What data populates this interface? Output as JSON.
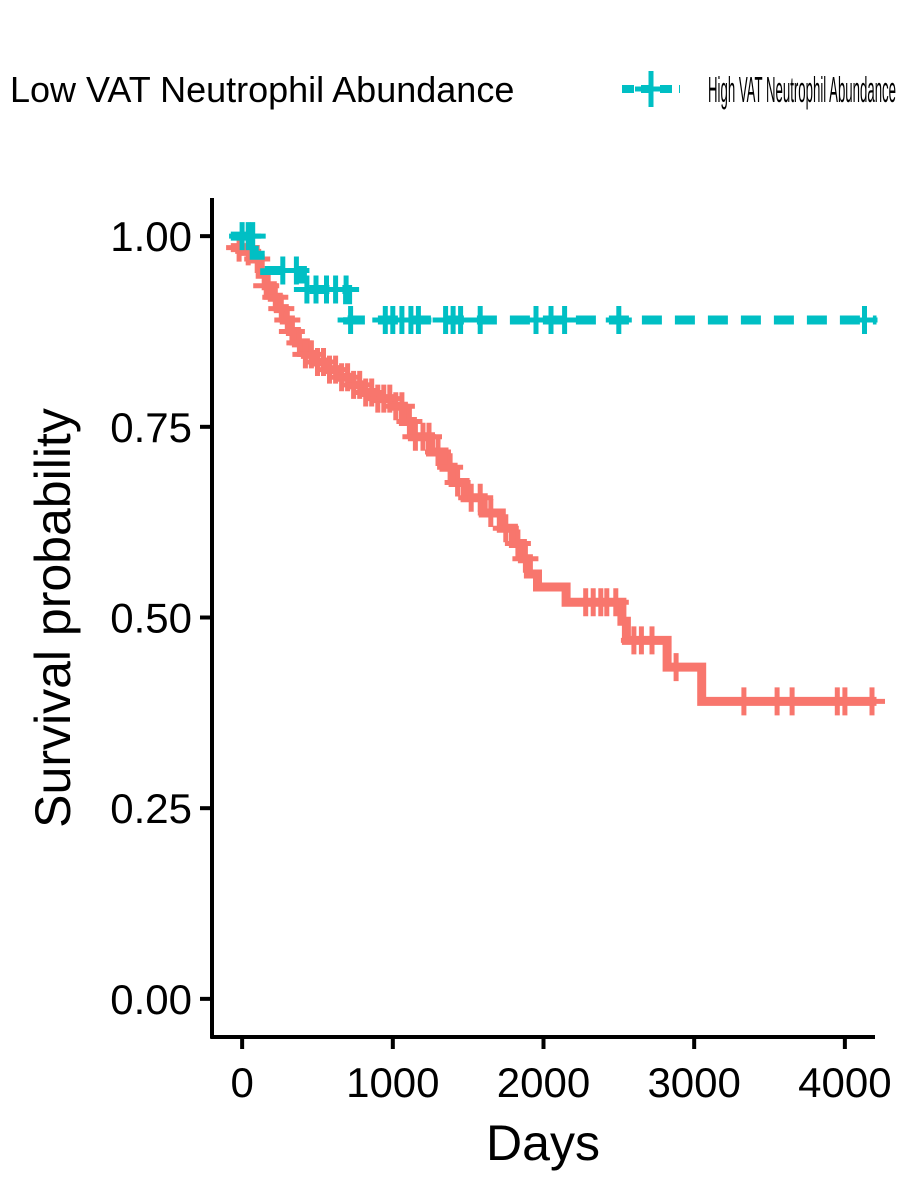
{
  "chart_data": {
    "type": "line",
    "subtype": "kaplan-meier",
    "title": "",
    "xlabel": "Days",
    "ylabel": "Survival probability",
    "xlim": [
      -200,
      4200
    ],
    "ylim": [
      -0.05,
      1.05
    ],
    "x_ticks": [
      0,
      1000,
      2000,
      3000,
      4000
    ],
    "y_ticks": [
      0.0,
      0.25,
      0.5,
      0.75,
      1.0
    ],
    "x_tick_labels": [
      "0",
      "1000",
      "2000",
      "3000",
      "4000"
    ],
    "y_tick_labels": [
      "0.00",
      "0.25",
      "0.50",
      "0.75",
      "1.00"
    ],
    "grid": false,
    "legend_position": "top",
    "series": [
      {
        "name": "Low VAT Neutrophil Abundance",
        "color": "#F8766D",
        "line_style": "solid",
        "steps": [
          [
            -75,
            0.985
          ],
          [
            0,
            0.98
          ],
          [
            60,
            0.97
          ],
          [
            120,
            0.95
          ],
          [
            160,
            0.935
          ],
          [
            200,
            0.92
          ],
          [
            240,
            0.905
          ],
          [
            280,
            0.89
          ],
          [
            320,
            0.875
          ],
          [
            360,
            0.86
          ],
          [
            420,
            0.845
          ],
          [
            480,
            0.835
          ],
          [
            560,
            0.825
          ],
          [
            640,
            0.815
          ],
          [
            720,
            0.805
          ],
          [
            800,
            0.795
          ],
          [
            880,
            0.787
          ],
          [
            1000,
            0.777
          ],
          [
            1070,
            0.757
          ],
          [
            1130,
            0.737
          ],
          [
            1250,
            0.717
          ],
          [
            1340,
            0.697
          ],
          [
            1400,
            0.677
          ],
          [
            1480,
            0.657
          ],
          [
            1600,
            0.637
          ],
          [
            1720,
            0.617
          ],
          [
            1800,
            0.597
          ],
          [
            1860,
            0.577
          ],
          [
            1900,
            0.557
          ],
          [
            1960,
            0.54
          ],
          [
            2150,
            0.52
          ],
          [
            2520,
            0.495
          ],
          [
            2550,
            0.47
          ],
          [
            2820,
            0.435
          ],
          [
            3050,
            0.39
          ],
          [
            4210,
            0.39
          ]
        ],
        "censor_x": [
          -20,
          40,
          100,
          160,
          220,
          260,
          300,
          330,
          380,
          420,
          460,
          500,
          540,
          580,
          620,
          660,
          700,
          740,
          780,
          820,
          860,
          900,
          940,
          980,
          1020,
          1060,
          1110,
          1150,
          1200,
          1240,
          1300,
          1380,
          1430,
          1520,
          1580,
          1650,
          1750,
          1830,
          1880,
          2280,
          2330,
          2380,
          2420,
          2480,
          2600,
          2650,
          2720,
          2880,
          3330,
          3550,
          3650,
          3950,
          4000,
          4180
        ]
      },
      {
        "name": "High VAT Neutrophil Abundance",
        "color": "#00BFC4",
        "line_style": "dashed",
        "steps": [
          [
            -75,
            1.0
          ],
          [
            80,
            0.975
          ],
          [
            150,
            0.955
          ],
          [
            400,
            0.93
          ],
          [
            700,
            0.89
          ],
          [
            4210,
            0.89
          ]
        ],
        "censor_x": [
          0,
          40,
          70,
          270,
          360,
          430,
          490,
          560,
          620,
          690,
          720,
          950,
          1000,
          1060,
          1120,
          1170,
          1350,
          1400,
          1450,
          1580,
          1950,
          2050,
          2140,
          2500,
          4130
        ]
      }
    ]
  }
}
